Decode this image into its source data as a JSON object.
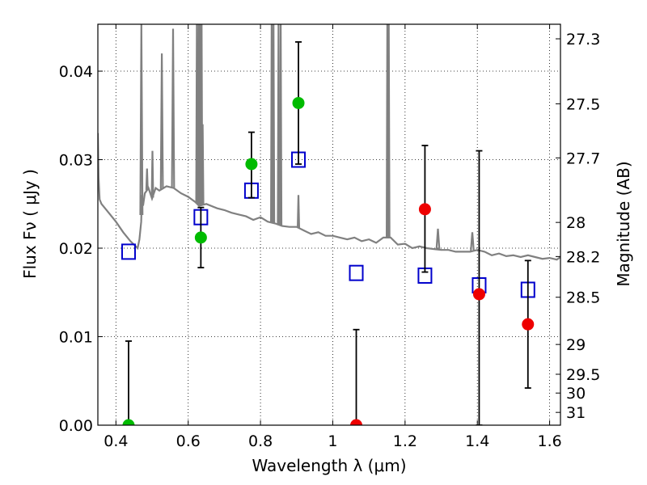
{
  "chart_data": {
    "type": "scatter",
    "xlabel": "Wavelength  λ (μm)",
    "ylabel": "Flux  Fν  ( μJy )",
    "ylabel_right": "Magnitude (AB)",
    "xlim": [
      0.35,
      1.63
    ],
    "ylim": [
      0.0,
      0.0453
    ],
    "grid": true,
    "x_ticks": [
      "0.4",
      "0.6",
      "0.8",
      "1",
      "1.2",
      "1.4",
      "1.6"
    ],
    "x_tick_values": [
      0.4,
      0.6,
      0.8,
      1.0,
      1.2,
      1.4,
      1.6
    ],
    "y_ticks": [
      "0.00",
      "0.01",
      "0.02",
      "0.03",
      "0.04"
    ],
    "y_tick_values": [
      0.0,
      0.01,
      0.02,
      0.03,
      0.04
    ],
    "mag_ticks": [
      "27.3",
      "27.5",
      "27.7",
      "28",
      "28.2",
      "28.5",
      "29",
      "29.5",
      "30",
      "31"
    ],
    "mag_tick_values": [
      27.3,
      27.5,
      27.7,
      28.0,
      28.2,
      28.5,
      29.0,
      29.5,
      30.0,
      31.0
    ],
    "colors": {
      "spectrum": "#808080",
      "model": "#0000cc",
      "detection": "#00bb00",
      "nondetection": "#ee0000",
      "errorbar": "#000000",
      "grid": "#000000"
    },
    "series": [
      {
        "marker": "square-open",
        "color": "#0000cc",
        "x": [
          0.435,
          0.635,
          0.775,
          0.905,
          1.065,
          1.255,
          1.405,
          1.54
        ],
        "y": [
          0.0196,
          0.0235,
          0.0265,
          0.03,
          0.0172,
          0.0169,
          0.0158,
          0.0153
        ]
      },
      {
        "marker": "circle",
        "color": "#00bb00",
        "x": [
          0.435,
          0.635,
          0.775,
          0.905
        ],
        "y": [
          0.0,
          0.0212,
          0.0295,
          0.0364
        ],
        "yerr_low": [
          0.0,
          0.0034,
          0.0038,
          0.0069
        ],
        "yerr_high": [
          0.0095,
          0.0034,
          0.0036,
          0.0069
        ]
      },
      {
        "marker": "circle",
        "color": "#ee0000",
        "x": [
          1.065,
          1.255,
          1.405,
          1.54
        ],
        "y": [
          0.0,
          0.0244,
          0.0148,
          0.0114
        ],
        "yerr_low": [
          0.0,
          0.0071,
          0.0148,
          0.0072
        ],
        "yerr_high": [
          0.0108,
          0.0072,
          0.0162,
          0.0072
        ]
      }
    ],
    "spectrum": {
      "x": [
        0.35,
        0.352,
        0.355,
        0.36,
        0.38,
        0.4,
        0.42,
        0.44,
        0.455,
        0.46,
        0.465,
        0.47,
        0.472,
        0.475,
        0.48,
        0.49,
        0.5,
        0.51,
        0.52,
        0.54,
        0.56,
        0.58,
        0.6,
        0.62,
        0.63,
        0.65,
        0.68,
        0.7,
        0.72,
        0.74,
        0.76,
        0.78,
        0.8,
        0.82,
        0.84,
        0.86,
        0.88,
        0.9,
        0.92,
        0.94,
        0.96,
        0.98,
        1.0,
        1.02,
        1.04,
        1.06,
        1.08,
        1.1,
        1.12,
        1.14,
        1.16,
        1.18,
        1.2,
        1.22,
        1.24,
        1.26,
        1.28,
        1.3,
        1.32,
        1.34,
        1.36,
        1.38,
        1.4,
        1.42,
        1.44,
        1.46,
        1.48,
        1.5,
        1.52,
        1.54,
        1.56,
        1.58,
        1.6,
        1.62,
        1.63
      ],
      "y": [
        0.033,
        0.028,
        0.0255,
        0.025,
        0.024,
        0.023,
        0.0218,
        0.0208,
        0.0202,
        0.02,
        0.021,
        0.023,
        0.026,
        0.0248,
        0.0262,
        0.0268,
        0.0256,
        0.0268,
        0.0265,
        0.027,
        0.0268,
        0.0262,
        0.0258,
        0.0252,
        0.0248,
        0.025,
        0.0245,
        0.0243,
        0.024,
        0.0238,
        0.0236,
        0.0232,
        0.0235,
        0.023,
        0.0228,
        0.0225,
        0.0224,
        0.0224,
        0.022,
        0.0216,
        0.0218,
        0.0214,
        0.0214,
        0.0212,
        0.021,
        0.0212,
        0.0208,
        0.021,
        0.0206,
        0.0212,
        0.0212,
        0.0204,
        0.0205,
        0.02,
        0.0202,
        0.02,
        0.0199,
        0.0198,
        0.0198,
        0.0196,
        0.0196,
        0.0196,
        0.0198,
        0.0196,
        0.0192,
        0.0194,
        0.0191,
        0.0192,
        0.019,
        0.0192,
        0.019,
        0.0188,
        0.0189,
        0.0187,
        0.019
      ]
    },
    "spectrum_lines": [
      {
        "x": 0.4705,
        "top": 0.0453,
        "w": 0.003
      },
      {
        "x": 0.486,
        "top": 0.029,
        "w": 0.002
      },
      {
        "x": 0.501,
        "top": 0.031,
        "w": 0.002
      },
      {
        "x": 0.527,
        "top": 0.042,
        "w": 0.003
      },
      {
        "x": 0.558,
        "top": 0.0448,
        "w": 0.003
      },
      {
        "x": 0.624,
        "top": 0.0453,
        "w": 0.002
      },
      {
        "x": 0.629,
        "top": 0.0453,
        "w": 0.002
      },
      {
        "x": 0.633,
        "top": 0.0453,
        "w": 0.002
      },
      {
        "x": 0.637,
        "top": 0.0453,
        "w": 0.002
      },
      {
        "x": 0.64,
        "top": 0.034,
        "w": 0.002
      },
      {
        "x": 0.831,
        "top": 0.0453,
        "w": 0.002
      },
      {
        "x": 0.836,
        "top": 0.0453,
        "w": 0.002
      },
      {
        "x": 0.85,
        "top": 0.0453,
        "w": 0.002
      },
      {
        "x": 0.856,
        "top": 0.0453,
        "w": 0.002
      },
      {
        "x": 0.905,
        "top": 0.026,
        "w": 0.002
      },
      {
        "x": 1.151,
        "top": 0.0453,
        "w": 0.002
      },
      {
        "x": 1.155,
        "top": 0.0453,
        "w": 0.002
      },
      {
        "x": 1.291,
        "top": 0.0222,
        "w": 0.004
      },
      {
        "x": 1.386,
        "top": 0.0218,
        "w": 0.004
      }
    ]
  }
}
